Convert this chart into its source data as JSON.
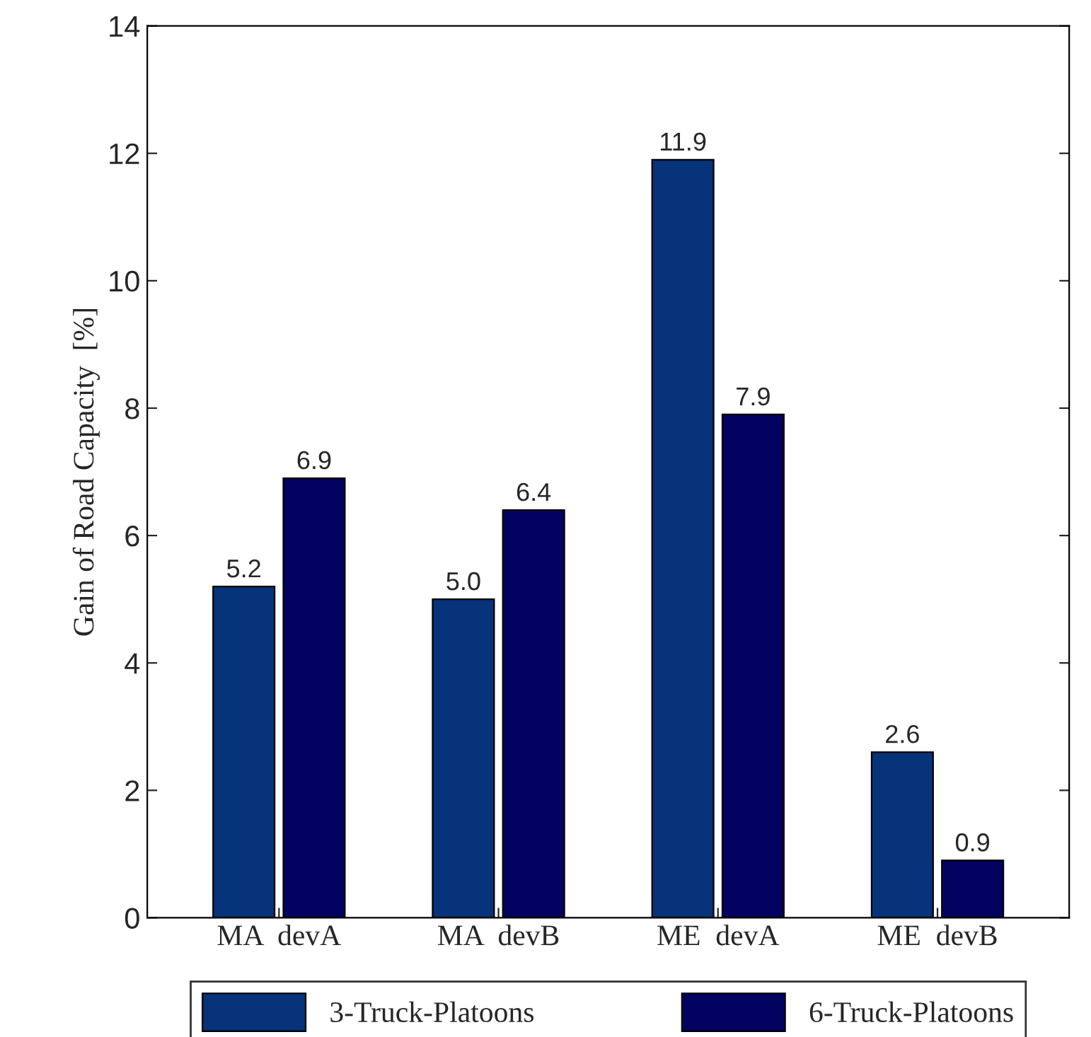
{
  "chart_data": {
    "type": "bar",
    "ylabel": "Gain of Road Capacity  [%]",
    "categories": [
      "MA  devA",
      "MA  devB",
      "ME  devA",
      "ME  devB"
    ],
    "series": [
      {
        "name": "3-Truck-Platoons",
        "color": "#06337a",
        "values": [
          5.2,
          5.0,
          11.9,
          2.6
        ],
        "value_labels": [
          "5.2",
          "5.0",
          "11.9",
          "2.6"
        ]
      },
      {
        "name": "6-Truck-Platoons",
        "color": "#020360",
        "values": [
          6.9,
          6.4,
          7.9,
          0.9
        ],
        "value_labels": [
          "6.9",
          "6.4",
          "7.9",
          "0.9"
        ]
      }
    ],
    "ylim": [
      0,
      14
    ],
    "yticks": [
      0,
      2,
      4,
      6,
      8,
      10,
      12,
      14
    ],
    "grid": false,
    "legend": "bottom"
  }
}
